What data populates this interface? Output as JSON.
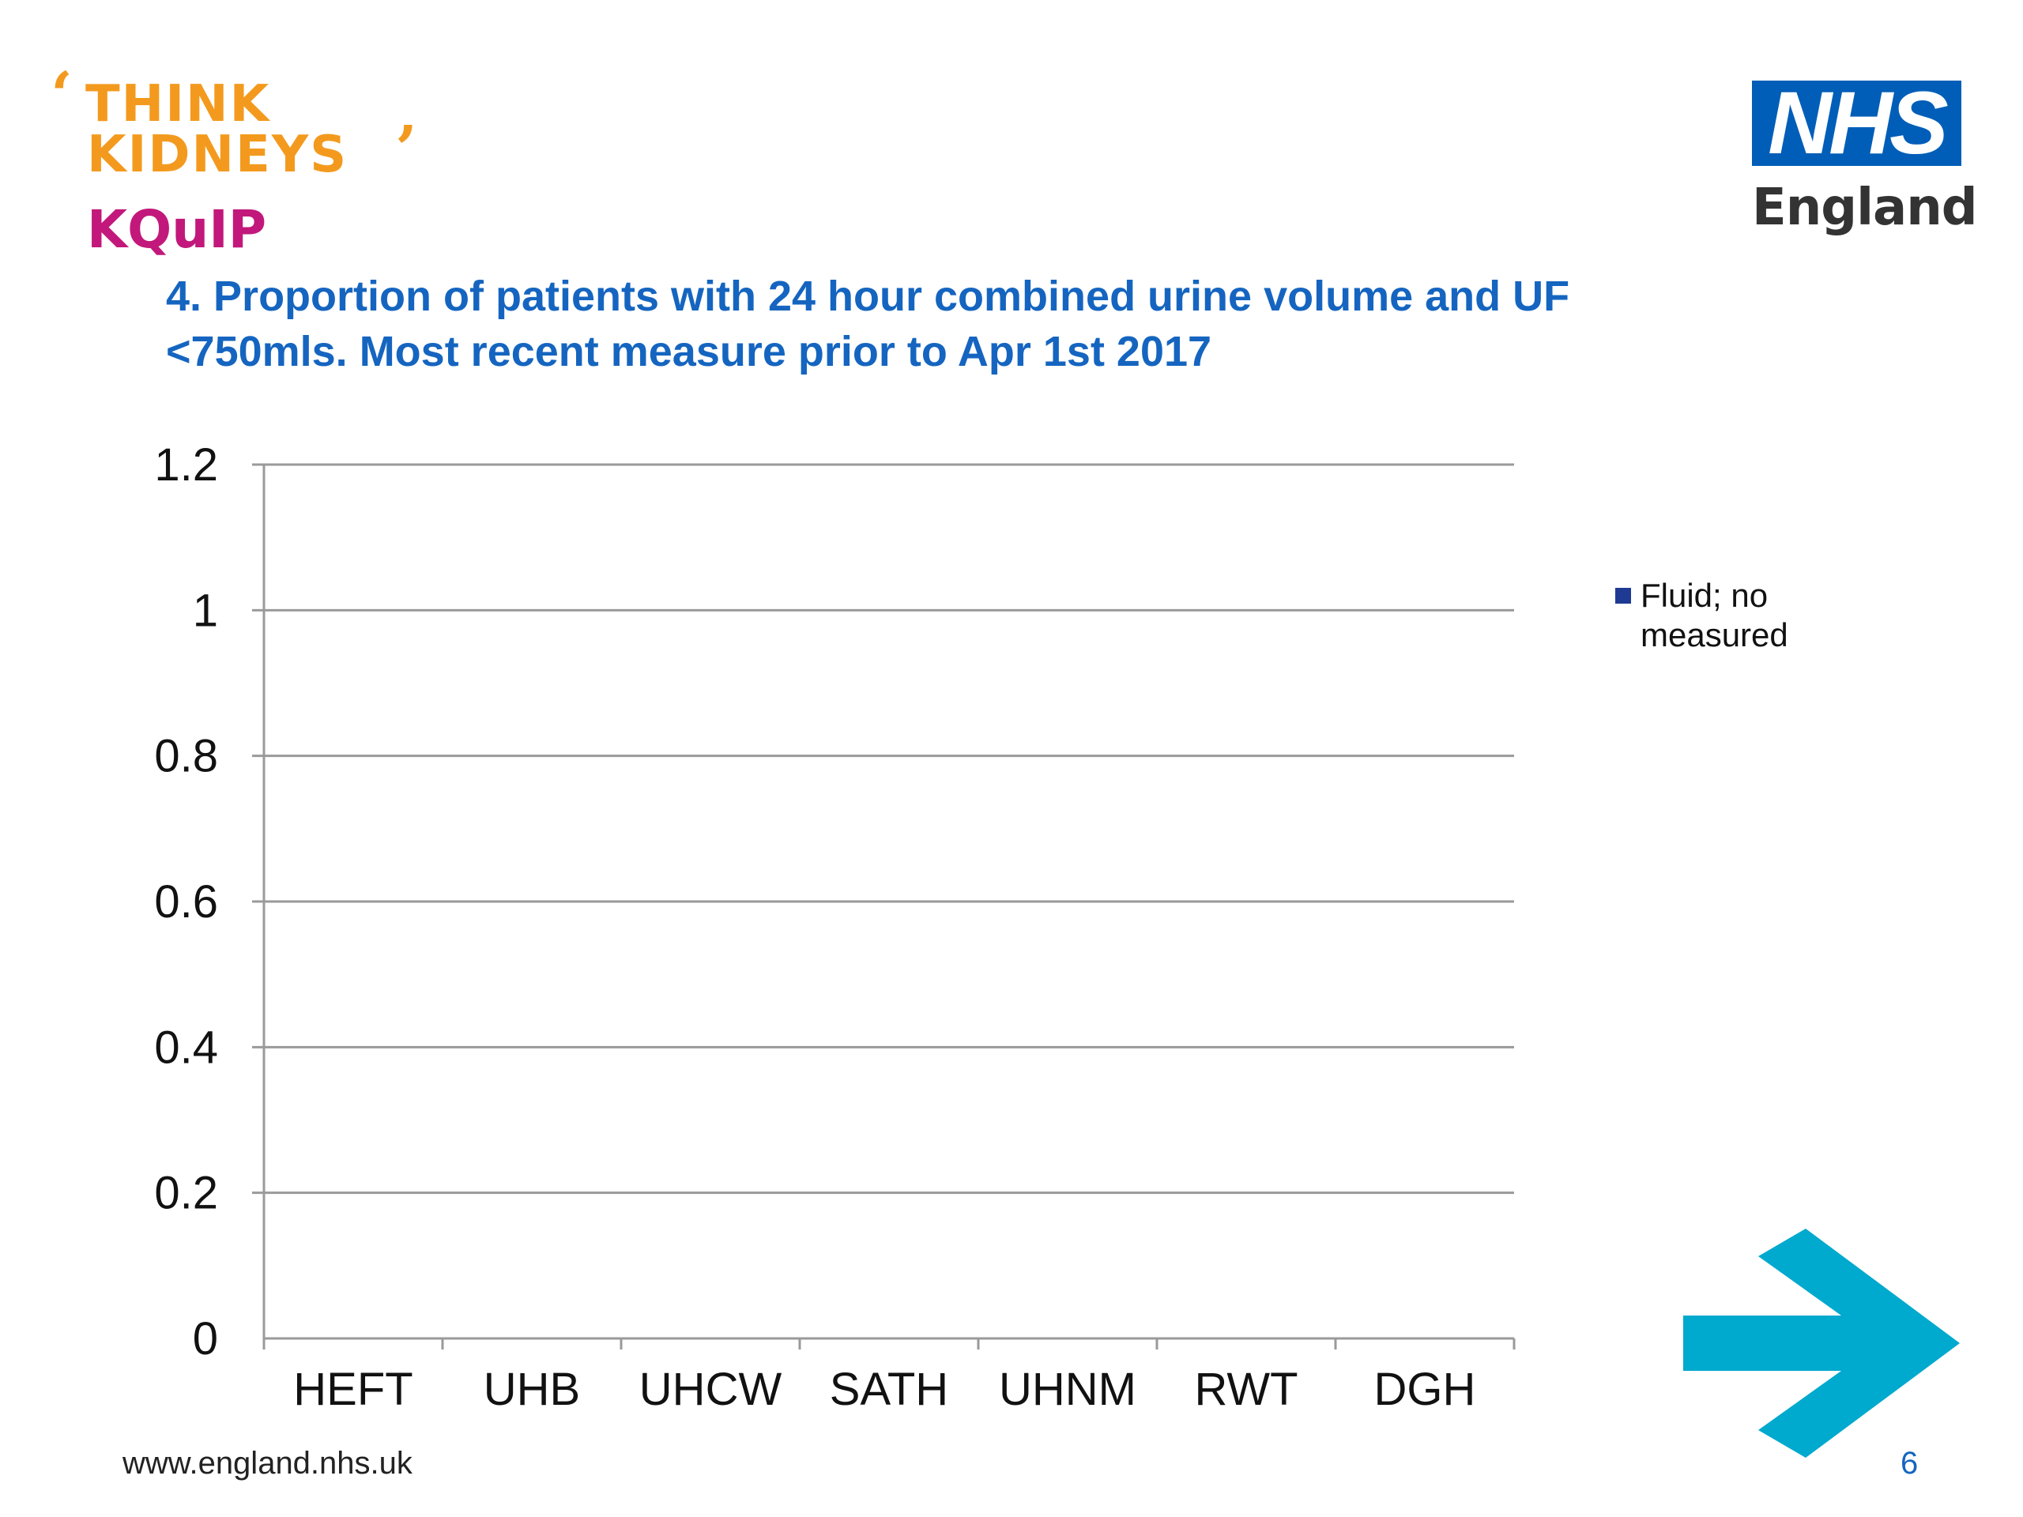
{
  "brand": {
    "think_line1": "THINK",
    "think_line2": "KIDNEYS",
    "kquip": "KQuIP",
    "nhs": "NHS",
    "nhs_sub": "England",
    "colors": {
      "think": "#f39a1e",
      "kquip": "#c2187b",
      "nhs": "#005eb8",
      "arrow": "#00a9ce"
    }
  },
  "slide": {
    "title_line1": "4. Proportion of patients with 24 hour combined urine volume  and UF",
    "title_line2": "<750mls. Most recent measure prior to Apr 1st 2017",
    "footer_url": "www.england.nhs.uk",
    "page_number": "6",
    "next_icon": "arrow-right-icon"
  },
  "chart_data": {
    "type": "bar",
    "categories": [
      "HEFT",
      "UHB",
      "UHCW",
      "SATH",
      "UHNM",
      "RWT",
      "DGH"
    ],
    "series": [
      {
        "name": "Fluid; no measured",
        "color": "#1f3a93",
        "values": [
          0,
          0,
          0,
          0,
          0,
          0,
          0
        ]
      }
    ],
    "ylim": [
      0,
      1.2
    ],
    "yticks": [
      "0",
      "0.2",
      "0.4",
      "0.6",
      "0.8",
      "1",
      "1.2"
    ],
    "grid": true,
    "legend_position": "right"
  }
}
